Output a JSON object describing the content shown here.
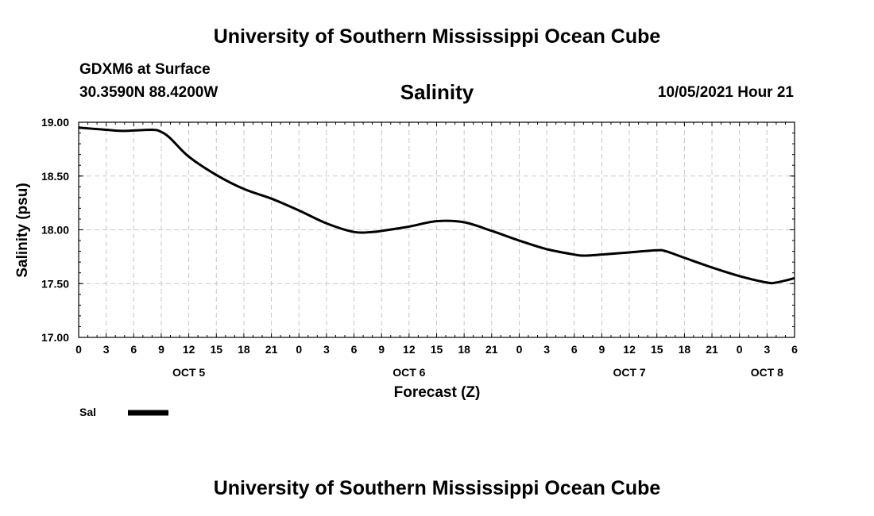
{
  "header": {
    "title": "University of Southern Mississippi Ocean Cube",
    "station": "GDXM6 at Surface",
    "coords": "30.3590N  88.4200W",
    "datetime": "10/05/2021 Hour 21"
  },
  "footer": {
    "title": "University of Southern Mississippi Ocean Cube"
  },
  "chart_data": {
    "type": "line",
    "title": "Salinity",
    "xlabel": "Forecast (Z)",
    "ylabel": "Salinity (psu)",
    "ylim": [
      17.0,
      19.0
    ],
    "yticks": [
      "17.00",
      "17.50",
      "18.00",
      "18.50",
      "19.00"
    ],
    "xlim": [
      0,
      78
    ],
    "x_ticks_hours": [
      0,
      3,
      6,
      9,
      12,
      15,
      18,
      21,
      24,
      27,
      30,
      33,
      36,
      39,
      42,
      45,
      48,
      51,
      54,
      57,
      60,
      63,
      66,
      69,
      72,
      75,
      78
    ],
    "x_tick_labels": [
      "0",
      "3",
      "6",
      "9",
      "12",
      "15",
      "18",
      "21",
      "0",
      "3",
      "6",
      "9",
      "12",
      "15",
      "18",
      "21",
      "0",
      "3",
      "6",
      "9",
      "12",
      "15",
      "18",
      "21",
      "0",
      "3",
      "6"
    ],
    "day_labels": [
      {
        "label": "OCT 5",
        "hour": 12
      },
      {
        "label": "OCT 6",
        "hour": 36
      },
      {
        "label": "OCT 7",
        "hour": 60
      },
      {
        "label": "OCT 8",
        "hour": 75
      }
    ],
    "grid": true,
    "series": [
      {
        "name": "Sal",
        "x": [
          0,
          3,
          5,
          8,
          9,
          10,
          12,
          15,
          18,
          21,
          24,
          27,
          30,
          32,
          33,
          36,
          39,
          42,
          45,
          48,
          51,
          54,
          55,
          57,
          60,
          63,
          64,
          66,
          69,
          72,
          75,
          76,
          78
        ],
        "values": [
          18.95,
          18.93,
          18.92,
          18.93,
          18.91,
          18.85,
          18.68,
          18.51,
          18.38,
          18.29,
          18.18,
          18.06,
          17.98,
          17.98,
          17.99,
          18.03,
          18.08,
          18.07,
          17.99,
          17.9,
          17.82,
          17.77,
          17.76,
          17.77,
          17.79,
          17.81,
          17.8,
          17.74,
          17.65,
          17.57,
          17.51,
          17.51,
          17.55
        ]
      }
    ]
  },
  "legend": {
    "label": "Sal",
    "color": "#000000"
  }
}
